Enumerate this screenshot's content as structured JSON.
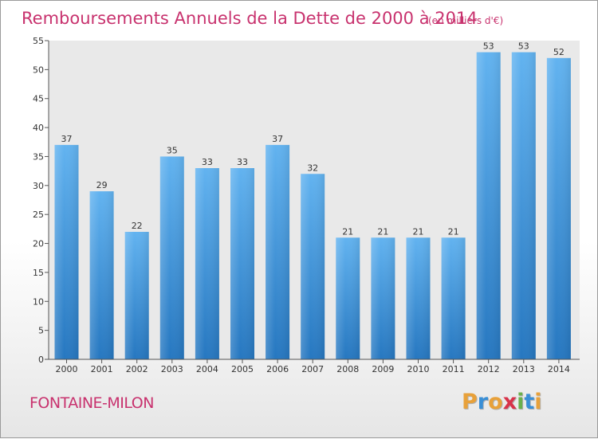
{
  "chart_data": {
    "type": "bar",
    "title": "Remboursements Annuels de la Dette de 2000 à 2014",
    "subtitle": "(en milliers d'€)",
    "categories": [
      "2000",
      "2001",
      "2002",
      "2003",
      "2004",
      "2005",
      "2006",
      "2007",
      "2008",
      "2009",
      "2010",
      "2011",
      "2012",
      "2013",
      "2014"
    ],
    "values": [
      37,
      29,
      22,
      35,
      33,
      33,
      37,
      32,
      21,
      21,
      21,
      21,
      53,
      53,
      52
    ],
    "ylim": [
      0,
      55
    ],
    "yticks": [
      0,
      5,
      10,
      15,
      20,
      25,
      30,
      35,
      40,
      45,
      50,
      55
    ],
    "xlabel": "",
    "ylabel": "",
    "grid": false
  },
  "footer": {
    "commune": "FONTAINE-MILON",
    "logo_letters": [
      "P",
      "r",
      "o",
      "x",
      "i",
      "t",
      "i"
    ],
    "logo_colors": [
      "#e8a13a",
      "#3a8fd6",
      "#e8a13a",
      "#d8334a",
      "#6ab04c",
      "#3a8fd6",
      "#e8a13a"
    ]
  },
  "colors": {
    "bar_light": "#5fb0ee",
    "bar_dark": "#2a7fc7",
    "plot_bg": "#e9e9e9",
    "title": "#c8326e"
  }
}
